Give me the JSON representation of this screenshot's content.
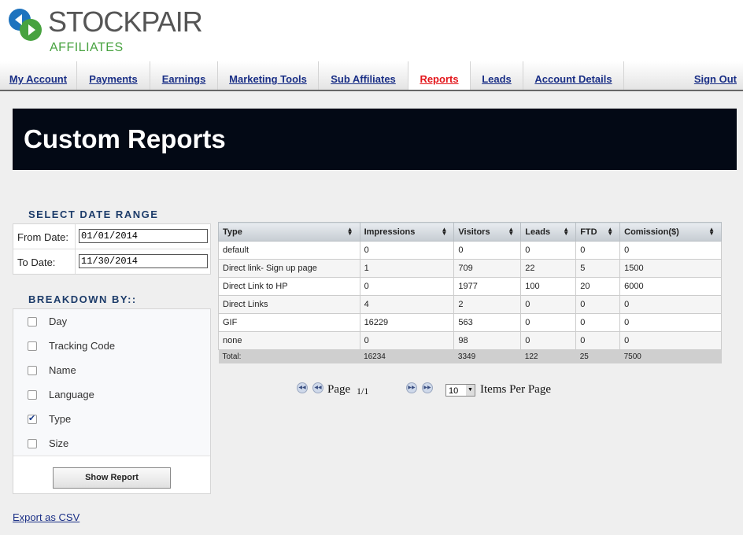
{
  "brand": {
    "name": "STOCKPAIR",
    "sub": "AFFILIATES",
    "colors": {
      "blue": "#1e73be",
      "green": "#47a23f"
    }
  },
  "nav": {
    "items": [
      {
        "label": "My Account"
      },
      {
        "label": "Payments"
      },
      {
        "label": "Earnings"
      },
      {
        "label": "Marketing Tools"
      },
      {
        "label": "Sub Affiliates"
      },
      {
        "label": "Reports",
        "active": true
      },
      {
        "label": "Leads"
      },
      {
        "label": "Account Details"
      }
    ],
    "signout": "Sign Out"
  },
  "page_title": "Custom Reports",
  "date_range": {
    "title": "SELECT DATE RANGE",
    "from_label": "From Date:",
    "from_value": "01/01/2014",
    "to_label": "To Date:",
    "to_value": "11/30/2014"
  },
  "breakdown": {
    "title": "BREAKDOWN BY::",
    "options": [
      {
        "label": "Day",
        "checked": false
      },
      {
        "label": "Tracking Code",
        "checked": false
      },
      {
        "label": "Name",
        "checked": false
      },
      {
        "label": "Language",
        "checked": false
      },
      {
        "label": "Type",
        "checked": true
      },
      {
        "label": "Size",
        "checked": false
      }
    ],
    "button": "Show Report"
  },
  "export_label": "Export as CSV",
  "table": {
    "headers": [
      "Type",
      "Impressions",
      "Visitors",
      "Leads",
      "FTD",
      "Comission($)"
    ],
    "rows": [
      [
        "default",
        "0",
        "0",
        "0",
        "0",
        "0"
      ],
      [
        "Direct link- Sign up page",
        "1",
        "709",
        "22",
        "5",
        "1500"
      ],
      [
        "Direct Link to HP",
        "0",
        "1977",
        "100",
        "20",
        "6000"
      ],
      [
        "Direct Links",
        "4",
        "2",
        "0",
        "0",
        "0"
      ],
      [
        "GIF",
        "16229",
        "563",
        "0",
        "0",
        "0"
      ],
      [
        "none",
        "0",
        "98",
        "0",
        "0",
        "0"
      ]
    ],
    "total": [
      "Total:",
      "16234",
      "3349",
      "122",
      "25",
      "7500"
    ]
  },
  "pager": {
    "page_label": "Page",
    "page_value": "1/1",
    "per_page_value": "10",
    "per_page_label": "Items Per Page"
  }
}
